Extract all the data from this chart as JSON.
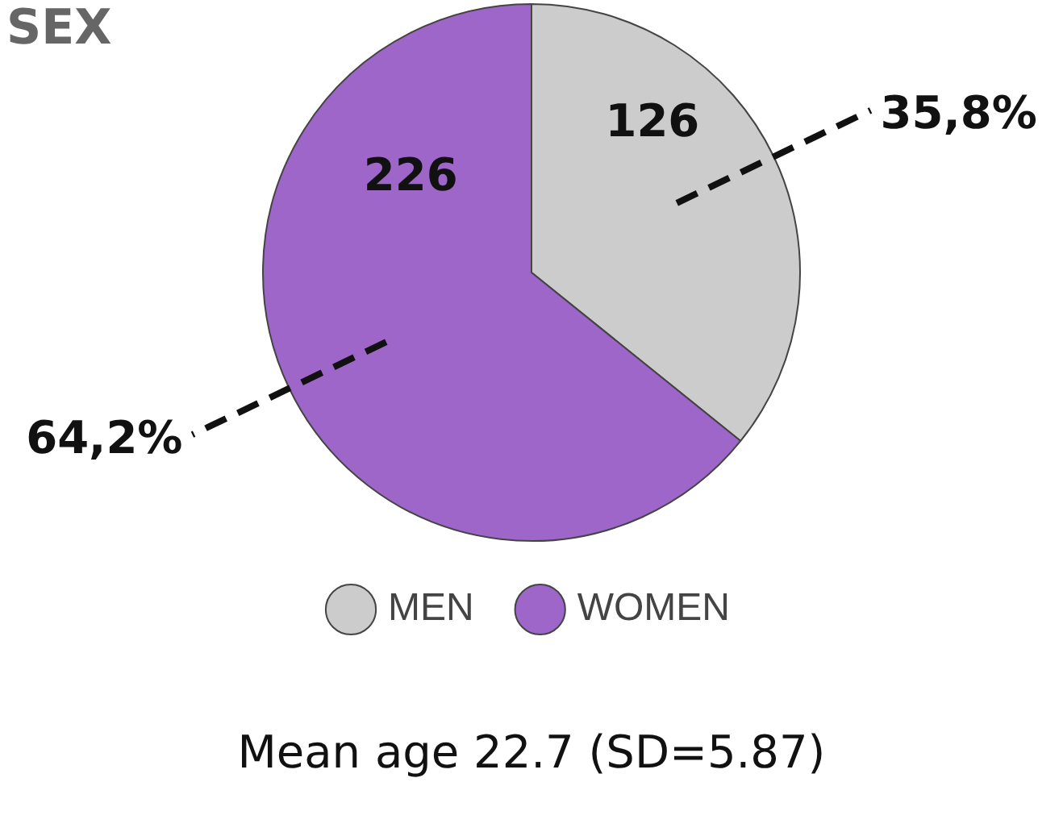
{
  "chart_data": {
    "type": "pie",
    "title": "SEX",
    "categories": [
      "MEN",
      "WOMEN"
    ],
    "values": [
      126,
      226
    ],
    "colors": [
      "#cccccc",
      "#9e66c9"
    ],
    "data_labels": true,
    "legend": "bottom",
    "annotations": [
      "35,8%",
      "64,2%",
      "Mean age 22.7 (SD=5.87)"
    ]
  }
}
